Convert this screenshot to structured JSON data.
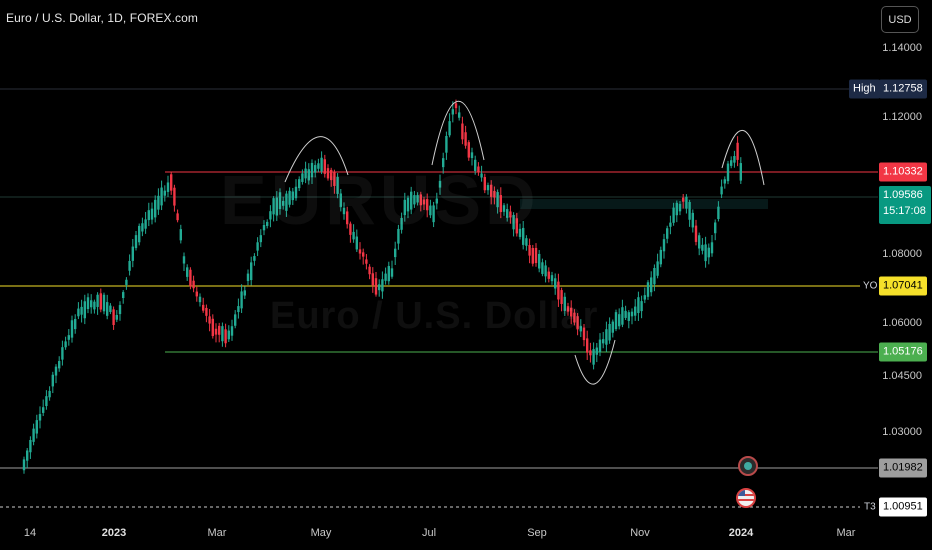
{
  "header": {
    "title": "Euro / U.S. Dollar, 1D, FOREX.com",
    "currency_button": "USD"
  },
  "watermark": {
    "symbol_text": "Euro / U.S. Dollar",
    "ticker_text": "EURUSD"
  },
  "price_axis": {
    "ticks": [
      {
        "value": 1.14,
        "label": "1.14000"
      },
      {
        "value": 1.12,
        "label": "1.12000"
      },
      {
        "value": 1.08,
        "label": "1.08000"
      },
      {
        "value": 1.06,
        "label": "1.06000"
      },
      {
        "value": 1.045,
        "label": "1.04500"
      },
      {
        "value": 1.03,
        "label": "1.03000"
      }
    ]
  },
  "time_axis": {
    "ticks": [
      {
        "label": "14",
        "bold": false
      },
      {
        "label": "2023",
        "bold": true
      },
      {
        "label": "Mar",
        "bold": false
      },
      {
        "label": "May",
        "bold": false
      },
      {
        "label": "Jul",
        "bold": false
      },
      {
        "label": "Sep",
        "bold": false
      },
      {
        "label": "Nov",
        "bold": false
      },
      {
        "label": "2024",
        "bold": true
      },
      {
        "label": "Mar",
        "bold": false
      }
    ]
  },
  "price_tags": {
    "high": {
      "label": "High",
      "value": "1.12758",
      "color": "#1d2a45"
    },
    "resistance": {
      "value": "1.10332",
      "color": "#f23645"
    },
    "current": {
      "value": "1.09586",
      "countdown": "15:17:08",
      "color": "#089981"
    },
    "yearly_open": {
      "label": "YO",
      "value": "1.07041",
      "color": "#f5e02a"
    },
    "support": {
      "value": "1.05176",
      "color": "#4caf50"
    },
    "level_gray": {
      "value": "1.01982",
      "color": "#9e9e9e"
    },
    "target": {
      "label": "T3",
      "value": "1.00951",
      "color": "#ffffff"
    }
  },
  "colors": {
    "up": "#22ab94",
    "down": "#f23645",
    "background": "#000000"
  },
  "event_icons": [
    {
      "name": "economic-event-icon"
    },
    {
      "name": "us-flag-event-icon"
    }
  ]
}
